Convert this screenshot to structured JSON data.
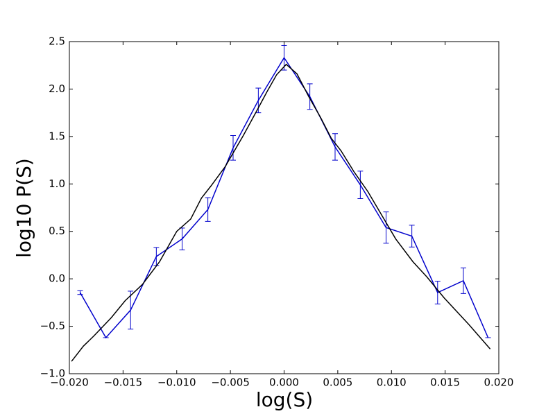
{
  "chart_data": {
    "type": "line",
    "xlabel": "log(S)",
    "ylabel": "log10 P(S)",
    "xlim": [
      -0.02,
      0.02
    ],
    "xticks": [
      {
        "value": -0.02,
        "label": "−0.020"
      },
      {
        "value": -0.015,
        "label": "−0.015"
      },
      {
        "value": -0.01,
        "label": "−0.010"
      },
      {
        "value": -0.005,
        "label": "−0.005"
      },
      {
        "value": 0,
        "label": "0.000"
      },
      {
        "value": 0.005,
        "label": "0.005"
      },
      {
        "value": 0.01,
        "label": "0.010"
      },
      {
        "value": 0.015,
        "label": "0.015"
      },
      {
        "value": 0.02,
        "label": "0.020"
      }
    ],
    "ylim": [
      -1,
      2.5
    ],
    "yticks": [
      {
        "value": -1,
        "label": "−1.0"
      },
      {
        "value": -0.5,
        "label": "−0.5"
      },
      {
        "value": 0,
        "label": "0.0"
      },
      0.5,
      {
        "value": 1,
        "label": "1.0"
      },
      1.5,
      {
        "value": 2,
        "label": "2.0"
      },
      2.5
    ],
    "grid": false,
    "series": [
      {
        "color": "#0000cc",
        "error_bars": true,
        "x": [
          -0.019,
          -0.0166,
          -0.0143,
          -0.0119,
          -0.0095,
          -0.0071,
          -0.00475,
          -0.0024,
          0.0,
          0.0024,
          0.00475,
          0.0071,
          0.0095,
          0.0119,
          0.0143,
          0.0167,
          0.019
        ],
        "values": [
          -0.145,
          -0.62,
          -0.33,
          0.235,
          0.42,
          0.73,
          1.38,
          1.88,
          2.33,
          1.92,
          1.39,
          0.99,
          0.54,
          0.45,
          -0.145,
          -0.02,
          -0.62
        ],
        "errors": [
          0.02,
          0.0,
          0.2,
          0.095,
          0.115,
          0.125,
          0.13,
          0.13,
          0.13,
          0.135,
          0.14,
          0.145,
          0.165,
          0.115,
          0.12,
          0.135,
          0.0
        ]
      },
      {
        "color": "#000000",
        "error_bars": false,
        "x": [
          -0.0198,
          -0.0187,
          -0.0177,
          -0.0161,
          -0.0148,
          -0.0132,
          -0.0116,
          -0.01,
          -0.0087,
          -0.0077,
          -0.0068,
          -0.0055,
          -0.0038,
          -0.0025,
          -0.0016,
          -0.0007,
          0.0002,
          0.0012,
          0.0023,
          0.0034,
          0.0044,
          0.0053,
          0.0065,
          0.0078,
          0.0091,
          0.0104,
          0.012,
          0.0133,
          0.0149,
          0.0172,
          0.0192
        ],
        "values": [
          -0.87,
          -0.71,
          -0.6,
          -0.41,
          -0.23,
          -0.06,
          0.18,
          0.5,
          0.63,
          0.85,
          0.98,
          1.18,
          1.51,
          1.78,
          1.97,
          2.15,
          2.26,
          2.16,
          1.92,
          1.7,
          1.48,
          1.35,
          1.13,
          0.92,
          0.67,
          0.42,
          0.18,
          0.02,
          -0.2,
          -0.48,
          -0.74
        ]
      }
    ]
  }
}
